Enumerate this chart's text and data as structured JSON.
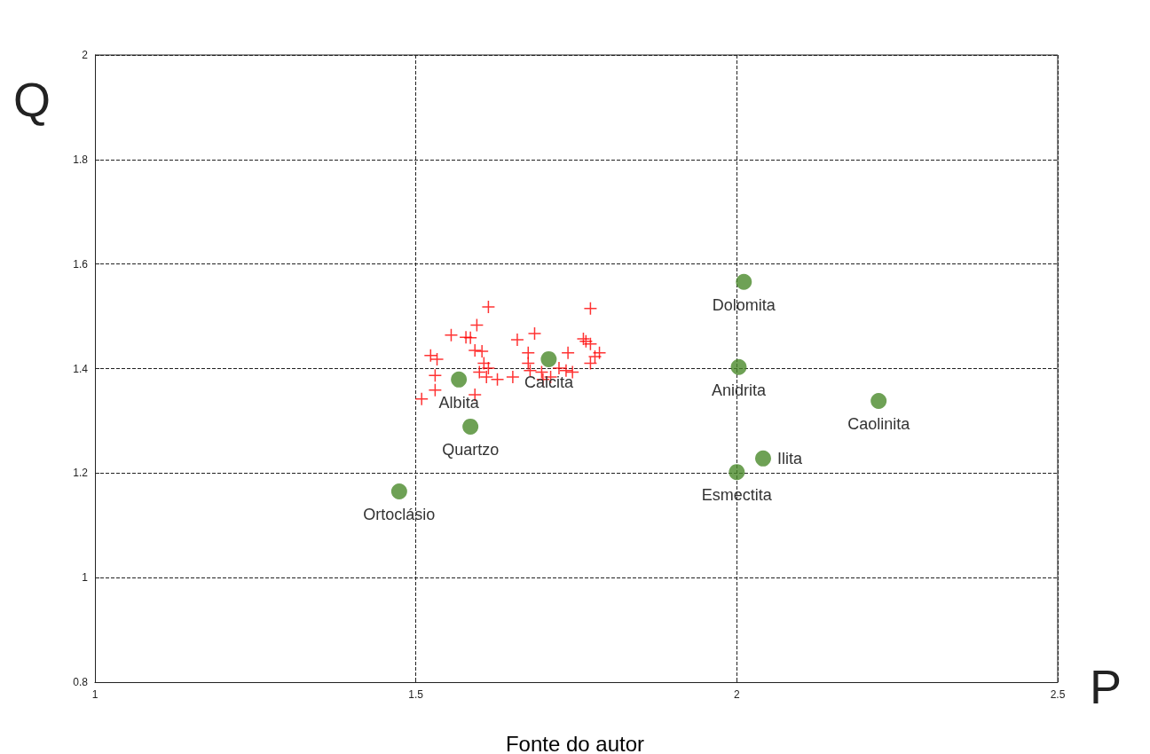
{
  "chart_data": {
    "type": "scatter",
    "xlabel": "P",
    "ylabel": "Q",
    "xlim": [
      1,
      2.5
    ],
    "xticks": [
      1,
      1.5,
      2,
      2.5
    ],
    "ylim": [
      0.8,
      2
    ],
    "yticks": [
      0.8,
      1,
      1.2,
      1.4,
      1.6,
      1.8,
      2
    ],
    "grid": true,
    "line_style": "dashed",
    "series": [
      {
        "color": "#ff0000",
        "marker": "cross",
        "x": [
          1.509,
          1.523,
          1.533,
          1.53,
          1.53,
          1.555,
          1.578,
          1.585,
          1.595,
          1.613,
          1.592,
          1.603,
          1.606,
          1.613,
          1.599,
          1.61,
          1.627,
          1.651,
          1.592,
          1.658,
          1.685,
          1.675,
          1.675,
          1.678,
          1.696,
          1.71,
          1.723,
          1.737,
          1.734,
          1.744,
          1.761,
          1.765,
          1.772,
          1.772,
          1.779,
          1.786,
          1.772,
          1.698
        ],
        "values": [
          1.342,
          1.425,
          1.418,
          1.387,
          1.359,
          1.464,
          1.46,
          1.459,
          1.483,
          1.518,
          1.435,
          1.433,
          1.41,
          1.401,
          1.393,
          1.384,
          1.379,
          1.384,
          1.35,
          1.455,
          1.467,
          1.43,
          1.41,
          1.396,
          1.393,
          1.384,
          1.401,
          1.43,
          1.396,
          1.393,
          1.457,
          1.452,
          1.447,
          1.515,
          1.423,
          1.43,
          1.41,
          1.379
        ]
      },
      {
        "color": "#4a8a2a",
        "marker": "circle",
        "x": [
          2.011,
          2.003,
          2.221,
          2.041,
          2.0,
          1.474,
          1.585,
          1.567,
          1.707
        ],
        "values": [
          1.566,
          1.403,
          1.338,
          1.228,
          1.202,
          1.165,
          1.289,
          1.379,
          1.418
        ]
      }
    ],
    "annotations": [
      {
        "text": "Dolomita",
        "x": 2.011,
        "y": 1.566
      },
      {
        "text": "Anidrita",
        "x": 2.003,
        "y": 1.403
      },
      {
        "text": "Caolinita",
        "x": 2.221,
        "y": 1.338
      },
      {
        "text": "Esmectita",
        "x": 2.0,
        "y": 1.202
      },
      {
        "text": "Ilita",
        "x": 2.041,
        "y": 1.228
      },
      {
        "text": "Ortoclásio",
        "x": 1.474,
        "y": 1.165
      },
      {
        "text": "Quartzo",
        "x": 1.585,
        "y": 1.289
      },
      {
        "text": "Albita",
        "x": 1.567,
        "y": 1.379
      },
      {
        "text": "Calcita",
        "x": 1.707,
        "y": 1.418
      },
      "Fonte do autor"
    ]
  }
}
